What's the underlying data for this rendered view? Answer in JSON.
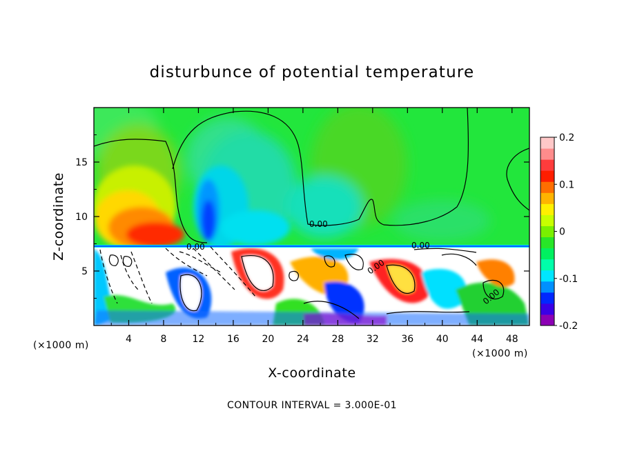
{
  "chart_data": {
    "type": "heatmap",
    "title": "disturbunce of potential temperature",
    "xlabel": "X-coordinate",
    "ylabel": "Z-coordinate",
    "x_unit_left": "(×1000 m)",
    "x_unit_right": "(×1000 m)",
    "xlim": [
      0,
      50
    ],
    "ylim": [
      0,
      20
    ],
    "x_ticks": [
      4,
      8,
      12,
      16,
      20,
      24,
      28,
      32,
      36,
      40,
      44,
      48
    ],
    "y_ticks": [
      5,
      10,
      15
    ],
    "colorbar": {
      "vmin": -0.2,
      "vmax": 0.2,
      "ticks": [
        "0.2",
        "0.1",
        "0",
        "-0.1",
        "-0.2"
      ],
      "tick_values": [
        0.2,
        0.1,
        0,
        -0.1,
        -0.2
      ],
      "colors": [
        "#8c00b4",
        "#3a00e6",
        "#0028ff",
        "#0090ff",
        "#00e6ff",
        "#00ffaa",
        "#00f060",
        "#28e628",
        "#7af000",
        "#c8ff00",
        "#fff000",
        "#ffb400",
        "#ff6e00",
        "#ff1e00",
        "#ff3c3c",
        "#ff8c8c",
        "#ffc8c8"
      ]
    },
    "contour_labels": [
      "0.00",
      "0.00",
      "0.00",
      "0.00",
      "0.00"
    ],
    "footnote": "CONTOUR INTERVAL = 3.000E-01"
  }
}
